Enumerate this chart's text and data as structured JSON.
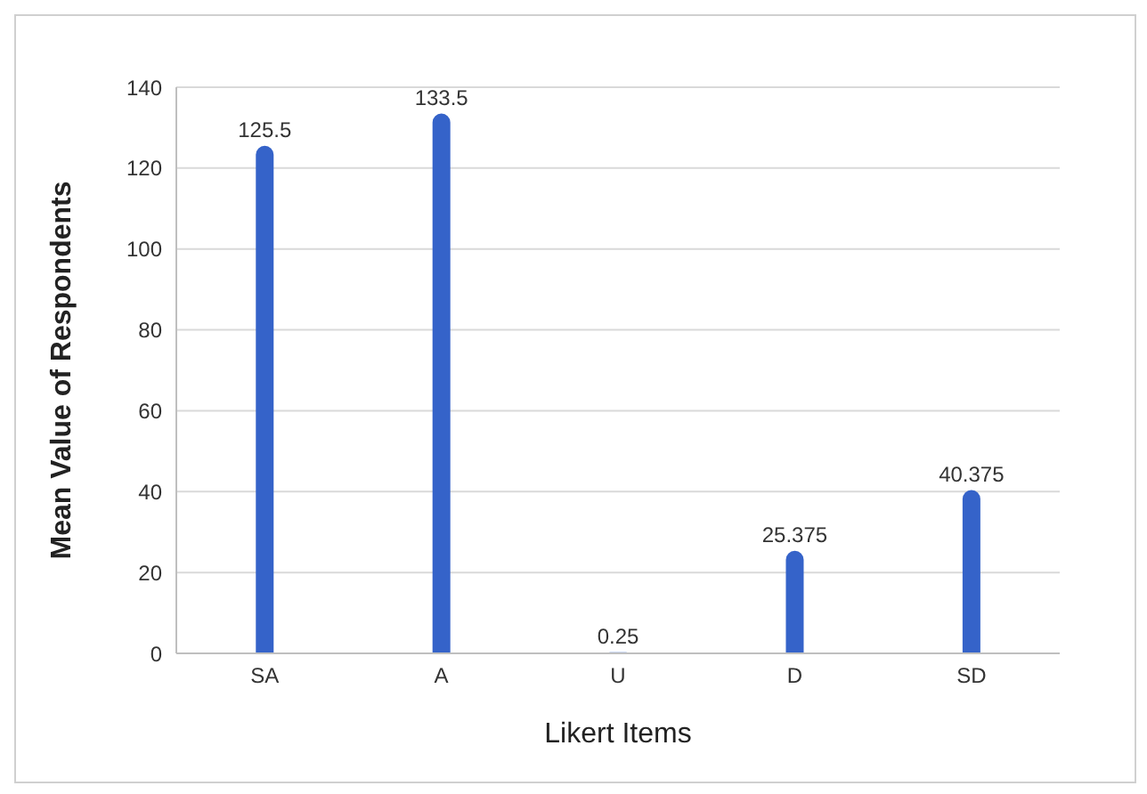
{
  "chart_data": {
    "type": "bar",
    "xlabel": "Likert Items",
    "ylabel": "Mean Value of Respondents",
    "categories": [
      "SA",
      "A",
      "U",
      "D",
      "SD"
    ],
    "values": [
      125.5,
      133.5,
      0.25,
      25.375,
      40.375
    ],
    "color": "#3563c9",
    "ylim": [
      0,
      140
    ],
    "yticks": [
      0,
      20,
      40,
      60,
      80,
      100,
      120,
      140
    ],
    "grid": "y",
    "data_labels": true
  }
}
